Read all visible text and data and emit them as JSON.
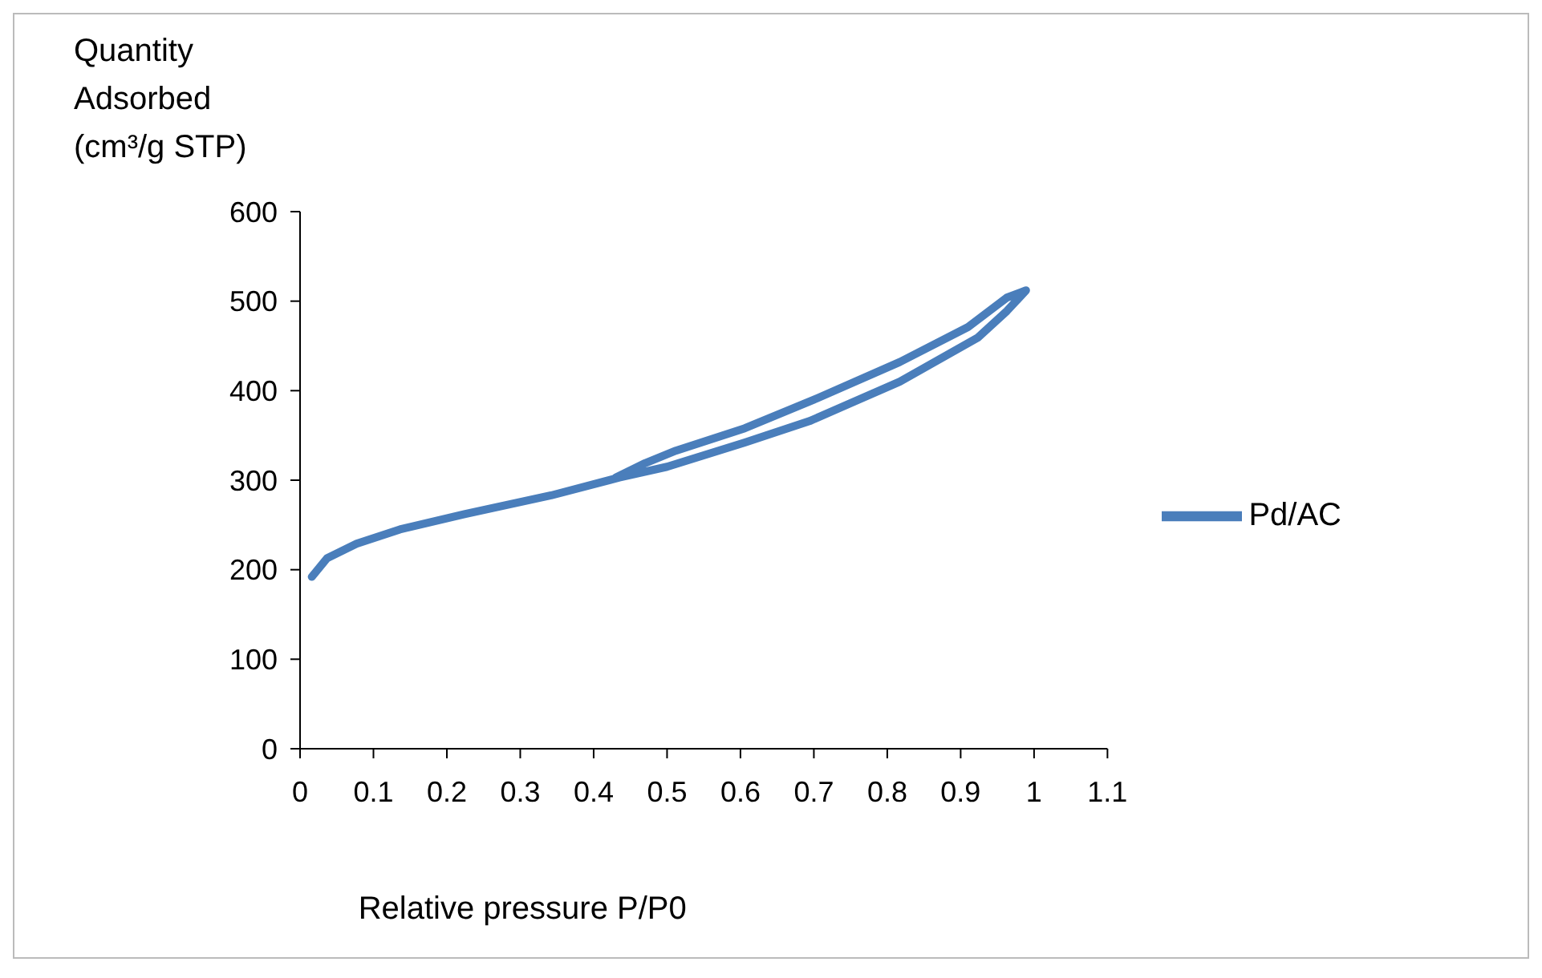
{
  "chart_data": {
    "type": "line",
    "xlabel": "Relative pressure P/P0",
    "ylabel": "Quantity Adsorbed (cm³/g STP)",
    "x": [
      0.016,
      0.037,
      0.077,
      0.136,
      0.224,
      0.342,
      0.435,
      0.5,
      0.606,
      0.694,
      0.817,
      0.923,
      0.963,
      0.989,
      0.963,
      0.91,
      0.817,
      0.706,
      0.606,
      0.512,
      0.47,
      0.43
    ],
    "series": [
      {
        "name": "Pd/AC",
        "color": "#4a7ebb",
        "values": [
          192,
          213,
          229,
          245,
          262,
          283,
          303,
          315,
          342,
          366,
          410,
          459,
          489,
          512,
          504,
          471,
          432,
          392,
          358,
          333,
          319,
          303
        ]
      }
    ],
    "xlim": [
      0,
      1.1
    ],
    "xticks": [
      0,
      0.1,
      0.2,
      0.3,
      0.4,
      0.5,
      0.6,
      0.7,
      0.8,
      0.9,
      1,
      1.1
    ],
    "ylim": [
      0,
      600
    ],
    "yticks": [
      0,
      100,
      200,
      300,
      400,
      500,
      600
    ],
    "grid": false,
    "legend": "right",
    "marker": "none",
    "line_style": "solid"
  }
}
